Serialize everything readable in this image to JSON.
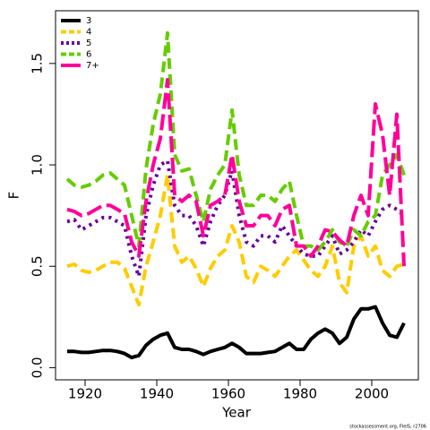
{
  "chart_data": {
    "type": "line",
    "xlabel": "Year",
    "ylabel": "F",
    "source": "stockassessment.org, FleIS, r2706",
    "x": [
      1915,
      1917,
      1919,
      1921,
      1923,
      1925,
      1927,
      1929,
      1931,
      1933,
      1935,
      1937,
      1939,
      1941,
      1943,
      1945,
      1947,
      1949,
      1951,
      1953,
      1955,
      1957,
      1959,
      1961,
      1963,
      1965,
      1967,
      1969,
      1971,
      1973,
      1975,
      1977,
      1979,
      1981,
      1983,
      1985,
      1987,
      1989,
      1991,
      1993,
      1995,
      1997,
      1999,
      2001,
      2003,
      2005,
      2007,
      2009
    ],
    "series": [
      {
        "name": "3",
        "color": "#000000",
        "dash": "solid",
        "values": [
          0.08,
          0.08,
          0.075,
          0.075,
          0.08,
          0.085,
          0.085,
          0.08,
          0.07,
          0.05,
          0.06,
          0.11,
          0.14,
          0.16,
          0.17,
          0.1,
          0.09,
          0.09,
          0.08,
          0.065,
          0.08,
          0.09,
          0.1,
          0.12,
          0.1,
          0.07,
          0.07,
          0.07,
          0.075,
          0.08,
          0.1,
          0.12,
          0.09,
          0.09,
          0.14,
          0.17,
          0.19,
          0.17,
          0.12,
          0.15,
          0.24,
          0.29,
          0.29,
          0.3,
          0.22,
          0.16,
          0.15,
          0.22
        ]
      },
      {
        "name": "4",
        "color": "#ffcc00",
        "dash": "dashed",
        "values": [
          0.5,
          0.51,
          0.48,
          0.47,
          0.48,
          0.5,
          0.52,
          0.52,
          0.49,
          0.4,
          0.31,
          0.5,
          0.62,
          0.75,
          0.95,
          0.6,
          0.52,
          0.55,
          0.49,
          0.4,
          0.49,
          0.55,
          0.58,
          0.7,
          0.62,
          0.45,
          0.42,
          0.5,
          0.48,
          0.45,
          0.5,
          0.55,
          0.58,
          0.53,
          0.48,
          0.45,
          0.5,
          0.6,
          0.42,
          0.37,
          0.6,
          0.65,
          0.55,
          0.6,
          0.48,
          0.45,
          0.5,
          0.51
        ]
      },
      {
        "name": "5",
        "color": "#660099",
        "dash": "dotted",
        "values": [
          0.72,
          0.73,
          0.68,
          0.7,
          0.72,
          0.74,
          0.74,
          0.72,
          0.7,
          0.55,
          0.45,
          0.75,
          0.9,
          1.0,
          1.02,
          0.8,
          0.75,
          0.75,
          0.7,
          0.6,
          0.72,
          0.8,
          0.85,
          0.97,
          0.75,
          0.62,
          0.6,
          0.65,
          0.65,
          0.62,
          0.7,
          0.65,
          0.6,
          0.56,
          0.55,
          0.55,
          0.6,
          0.65,
          0.56,
          0.58,
          0.62,
          0.68,
          0.65,
          0.72,
          0.78,
          0.8,
          0.78,
          0.75
        ]
      },
      {
        "name": "6",
        "color": "#66cc00",
        "dash": "dashed",
        "values": [
          0.93,
          0.9,
          0.89,
          0.9,
          0.92,
          0.95,
          0.96,
          0.93,
          0.9,
          0.75,
          0.6,
          0.98,
          1.2,
          1.35,
          1.65,
          1.05,
          0.97,
          0.98,
          0.85,
          0.72,
          0.88,
          0.95,
          1.0,
          1.27,
          0.95,
          0.8,
          0.8,
          0.85,
          0.85,
          0.82,
          0.88,
          0.92,
          0.75,
          0.6,
          0.6,
          0.58,
          0.62,
          0.68,
          0.62,
          0.6,
          0.68,
          0.65,
          0.72,
          0.75,
          0.95,
          1.0,
          1.05,
          0.95
        ]
      },
      {
        "name": "7+",
        "color": "#ff0099",
        "dash": "longdash",
        "values": [
          0.78,
          0.77,
          0.75,
          0.76,
          0.78,
          0.8,
          0.8,
          0.78,
          0.76,
          0.62,
          0.55,
          0.82,
          1.0,
          1.13,
          1.42,
          0.85,
          0.82,
          0.85,
          0.82,
          0.65,
          0.8,
          0.82,
          0.85,
          1.05,
          0.82,
          0.7,
          0.7,
          0.75,
          0.75,
          0.7,
          0.78,
          0.8,
          0.6,
          0.6,
          0.55,
          0.6,
          0.68,
          0.67,
          0.63,
          0.6,
          0.75,
          0.85,
          0.75,
          1.3,
          1.15,
          0.85,
          1.25,
          0.5
        ]
      }
    ],
    "xlim": [
      1911.75,
      2013
    ],
    "ylim": [
      -0.06,
      1.76
    ],
    "xticks": [
      1920,
      1940,
      1960,
      1980,
      2000
    ],
    "yticks": [
      {
        "value": 0,
        "label": "0.0"
      },
      0.5,
      {
        "value": 1,
        "label": "1.0"
      },
      1.5
    ],
    "legend": "top-left",
    "grid": false
  }
}
